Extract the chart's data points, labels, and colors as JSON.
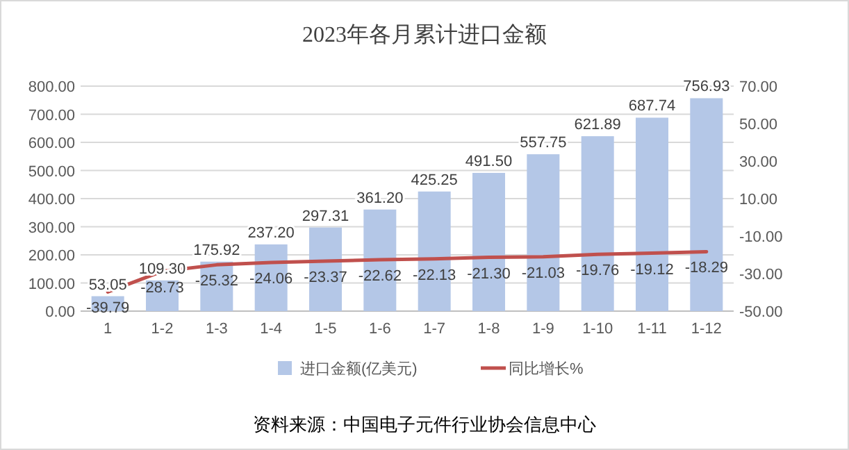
{
  "chart_data": {
    "type": "bar",
    "title": "2023年各月累计进口金额",
    "categories": [
      "1",
      "1-2",
      "1-3",
      "1-4",
      "1-5",
      "1-6",
      "1-7",
      "1-8",
      "1-9",
      "1-10",
      "1-11",
      "1-12"
    ],
    "series": [
      {
        "name": "进口金额(亿美元)",
        "color": "#b4c7e7",
        "values": [
          53.05,
          109.3,
          175.92,
          237.2,
          297.31,
          361.2,
          425.25,
          491.5,
          557.75,
          621.89,
          687.74,
          756.93
        ],
        "value_labels": [
          "53.05",
          "109.30",
          "175.92",
          "237.20",
          "297.31",
          "361.20",
          "425.25",
          "491.50",
          "557.75",
          "621.89",
          "687.74",
          "756.93"
        ]
      },
      {
        "name": "同比增长%",
        "type": "line",
        "axis": "y2",
        "color": "#c0504d",
        "values": [
          -39.79,
          -28.73,
          -25.32,
          -24.06,
          -23.37,
          -22.62,
          -22.13,
          -21.3,
          -21.03,
          -19.76,
          -19.12,
          -18.29
        ],
        "value_labels": [
          "-39.79",
          "-28.73",
          "-25.32",
          "-24.06",
          "-23.37",
          "-22.62",
          "-22.13",
          "-21.30",
          "-21.03",
          "-19.76",
          "-19.12",
          "-18.29"
        ]
      }
    ],
    "ylim": [
      0,
      800
    ],
    "yticks": [
      {
        "value": 0,
        "label": "0.00"
      },
      {
        "value": 100,
        "label": "100.00"
      },
      {
        "value": 200,
        "label": "200.00"
      },
      {
        "value": 300,
        "label": "300.00"
      },
      {
        "value": 400,
        "label": "400.00"
      },
      {
        "value": 500,
        "label": "500.00"
      },
      {
        "value": 600,
        "label": "600.00"
      },
      {
        "value": 700,
        "label": "700.00"
      },
      {
        "value": 800,
        "label": "800.00"
      }
    ],
    "y2lim": [
      -50,
      70
    ],
    "y2ticks": [
      {
        "value": -50,
        "label": "-50.00"
      },
      {
        "value": -30,
        "label": "-30.00"
      },
      {
        "value": -10,
        "label": "-10.00"
      },
      {
        "value": 10,
        "label": "10.00"
      },
      {
        "value": 30,
        "label": "30.00"
      },
      {
        "value": 50,
        "label": "50.00"
      },
      {
        "value": 70,
        "label": "70.00"
      }
    ],
    "grid": "y",
    "legend": "bottom",
    "marker": "none",
    "line_style": "solid",
    "annotations": [
      "资料来源：中国电子元件行业协会信息中心"
    ]
  }
}
